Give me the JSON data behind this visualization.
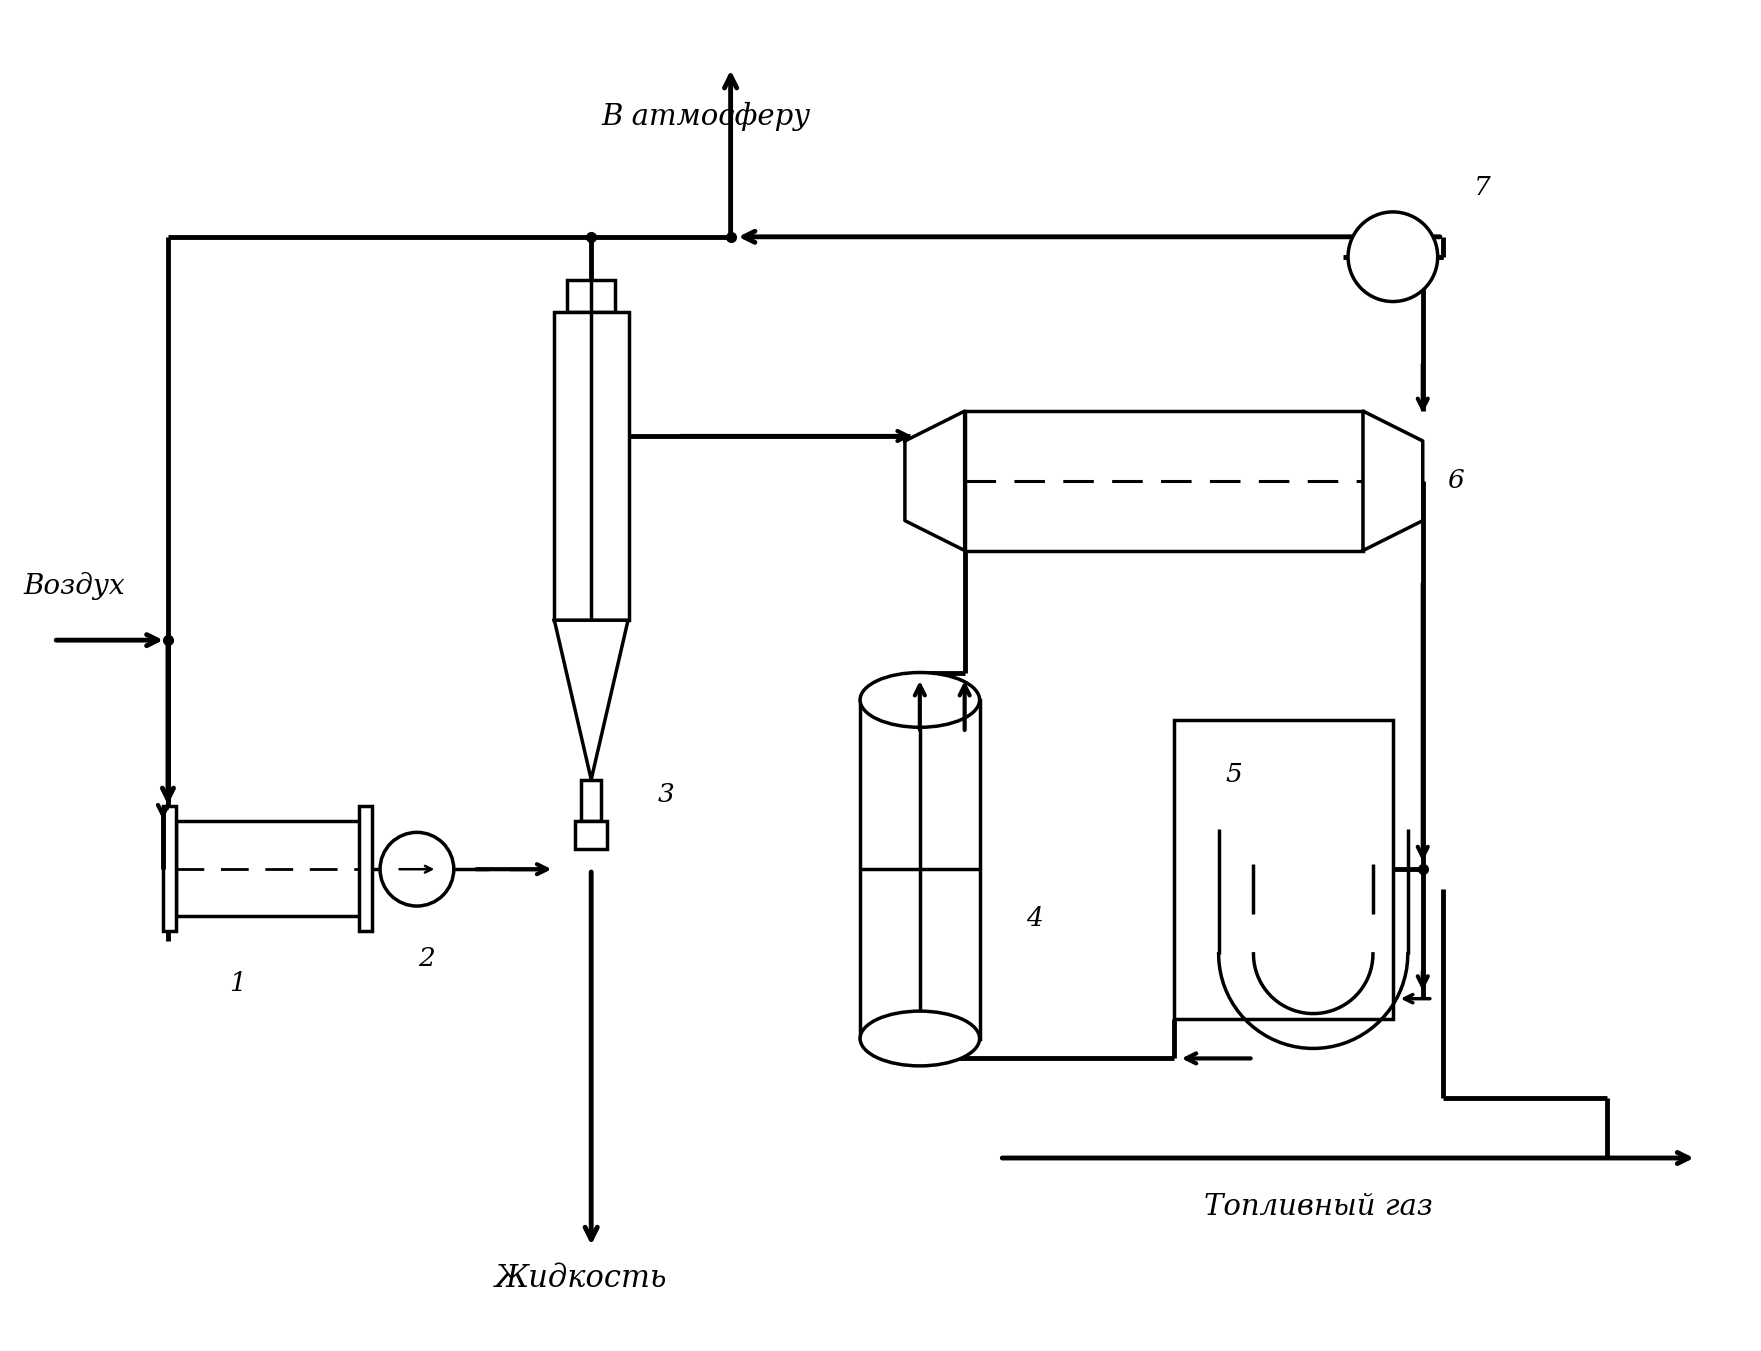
{
  "bg_color": "#ffffff",
  "lc": "#000000",
  "lw": 2.5,
  "fig_w": 17.61,
  "fig_h": 13.51,
  "labels": {
    "atmosphere": "В атмосферу",
    "air": "Воздух",
    "liquid": "Жидкость",
    "fuel_gas": "Топливный газ",
    "num1": "1",
    "num2": "2",
    "num3": "3",
    "num4": "4",
    "num5": "5",
    "num6": "6",
    "num7": "7"
  }
}
